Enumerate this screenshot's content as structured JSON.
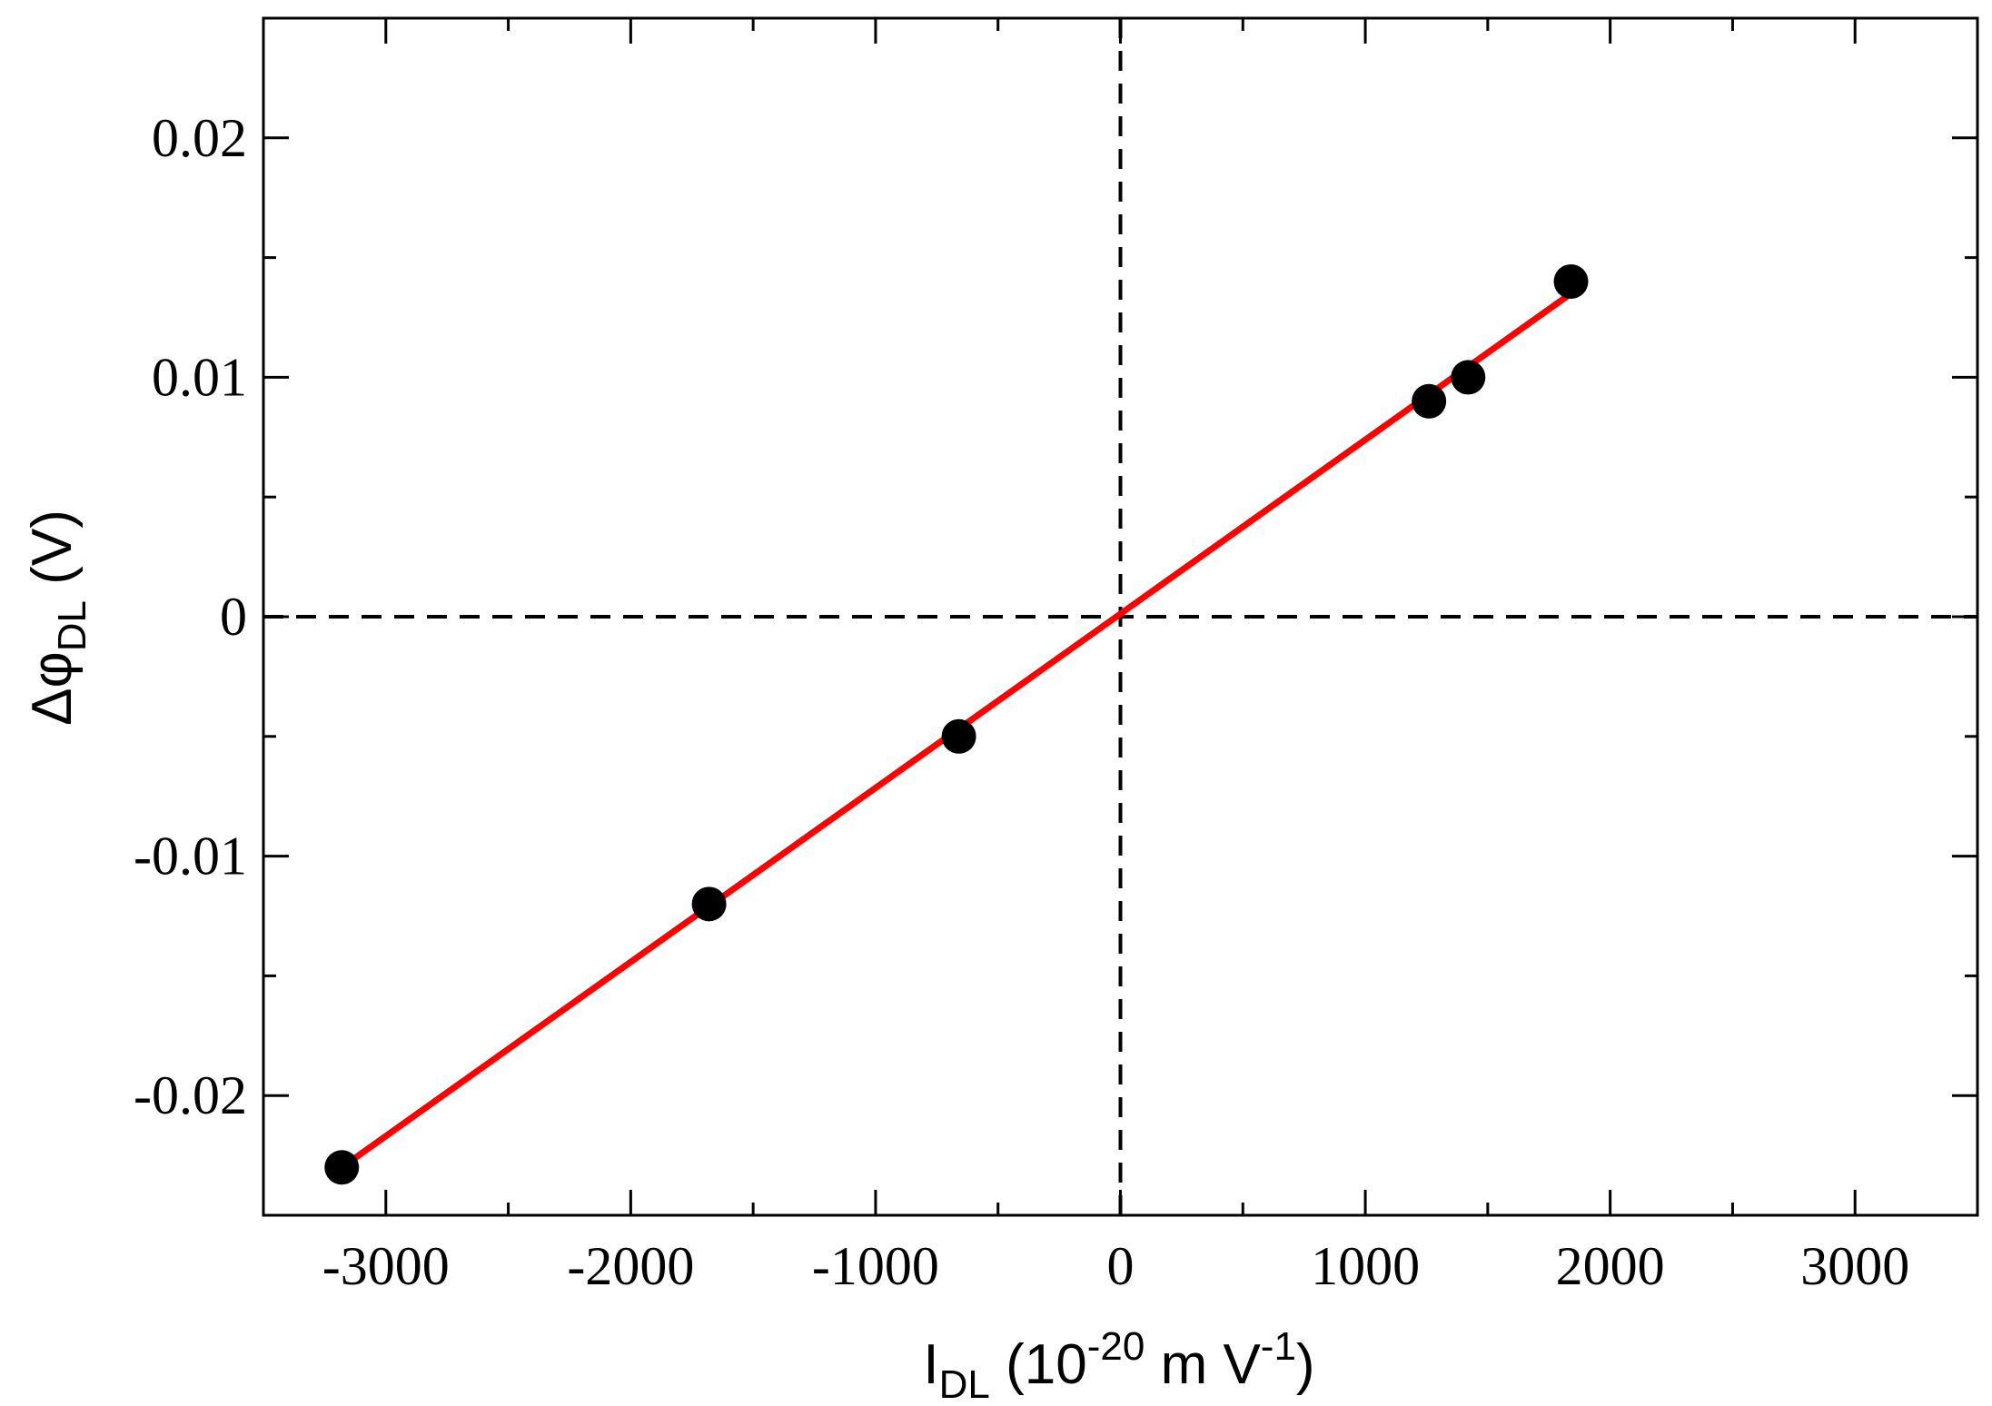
{
  "chart_data": {
    "type": "scatter",
    "title": "",
    "xlabel": {
      "main": "I",
      "sub": "DL",
      "rest_a": " (10",
      "sup_a": "-20",
      "rest_b": " m V",
      "sup_b": "-1",
      "rest_c": ")"
    },
    "ylabel": {
      "main": "Δφ",
      "sub": "DL",
      "rest": " (V)"
    },
    "xlim": [
      -3500,
      3500
    ],
    "ylim": [
      -0.025,
      0.025
    ],
    "x_ticks": [
      -3000,
      -2000,
      -1000,
      0,
      1000,
      2000,
      3000
    ],
    "x_tick_labels": [
      "-3000",
      "-2000",
      "-1000",
      "0",
      "1000",
      "2000",
      "3000"
    ],
    "x_minor_ticks": [
      -2500,
      -1500,
      -500,
      500,
      1500,
      2500
    ],
    "y_ticks": [
      -0.02,
      -0.01,
      0,
      0.01,
      0.02
    ],
    "y_tick_labels": [
      "-0.02",
      "-0.01",
      "0",
      "0.01",
      "0.02"
    ],
    "y_minor_ticks": [
      -0.015,
      -0.005,
      0.005,
      0.015
    ],
    "grid": false,
    "reference_lines": {
      "x": 0,
      "y": 0,
      "style": "dashed",
      "color": "#000000"
    },
    "series": [
      {
        "kind": "points",
        "color": "#000000",
        "x": [
          -3180,
          -1680,
          -660,
          1260,
          1420,
          1840
        ],
        "y": [
          -0.023,
          -0.012,
          -0.005,
          0.009,
          0.01,
          0.014
        ]
      },
      {
        "kind": "fit-line",
        "color": "#ff0000",
        "x": [
          -3180,
          1840
        ],
        "y": [
          -0.023,
          0.0135
        ]
      }
    ]
  }
}
